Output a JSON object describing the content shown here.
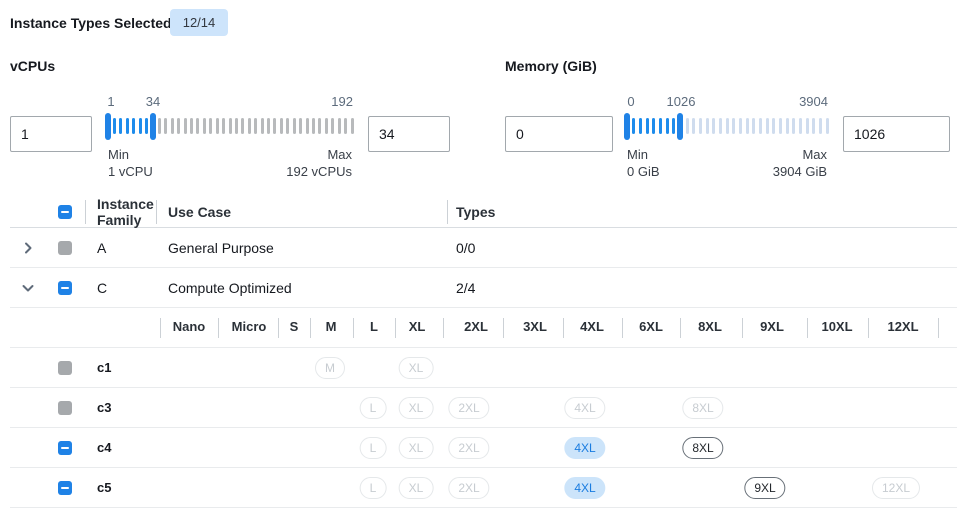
{
  "header": {
    "label": "Instance Types Selected:",
    "badge": "12/14"
  },
  "filters": {
    "vcpus": {
      "title": "vCPUs",
      "min_value": "1",
      "max_value": "34",
      "scale": {
        "min": "1",
        "mid": "34",
        "max": "192"
      },
      "min_label": "Min",
      "min_sublabel": "1 vCPU",
      "max_label": "Max",
      "max_sublabel": "192 vCPUs",
      "range": {
        "min": 1,
        "max": 192,
        "low": 1,
        "high": 34
      }
    },
    "memory": {
      "title": "Memory (GiB)",
      "min_value": "0",
      "max_value": "1026",
      "scale": {
        "min": "0",
        "mid": "1026",
        "max": "3904"
      },
      "min_label": "Min",
      "min_sublabel": "0 GiB",
      "max_label": "Max",
      "max_sublabel": "3904 GiB",
      "range": {
        "min": 0,
        "max": 3904,
        "low": 0,
        "high": 1026
      }
    }
  },
  "table": {
    "header": {
      "select_all_state": "indeterminate",
      "family": "Instance Family",
      "use_case": "Use Case",
      "types": "Types"
    },
    "size_columns": [
      "Nano",
      "Micro",
      "S",
      "M",
      "L",
      "XL",
      "2XL",
      "3XL",
      "4XL",
      "6XL",
      "8XL",
      "9XL",
      "10XL",
      "12XL"
    ],
    "families": [
      {
        "name": "A",
        "use_case": "General Purpose",
        "types": "0/0",
        "expanded": false,
        "checkbox": "disabled"
      },
      {
        "name": "C",
        "use_case": "Compute Optimized",
        "types": "2/4",
        "expanded": true,
        "checkbox": "indeterminate"
      }
    ],
    "instance_rows": [
      {
        "name": "c1",
        "checkbox": "disabled",
        "badges": [
          {
            "size": "M",
            "state": "disabled"
          },
          {
            "size": "XL",
            "state": "disabled"
          }
        ]
      },
      {
        "name": "c3",
        "checkbox": "disabled",
        "badges": [
          {
            "size": "L",
            "state": "disabled"
          },
          {
            "size": "XL",
            "state": "disabled"
          },
          {
            "size": "2XL",
            "state": "disabled"
          },
          {
            "size": "4XL",
            "state": "disabled"
          },
          {
            "size": "8XL",
            "state": "disabled"
          }
        ]
      },
      {
        "name": "c4",
        "checkbox": "indeterminate",
        "badges": [
          {
            "size": "L",
            "state": "disabled"
          },
          {
            "size": "XL",
            "state": "disabled"
          },
          {
            "size": "2XL",
            "state": "disabled"
          },
          {
            "size": "4XL",
            "state": "selected"
          },
          {
            "size": "8XL",
            "state": "enabled"
          }
        ]
      },
      {
        "name": "c5",
        "checkbox": "indeterminate",
        "badges": [
          {
            "size": "L",
            "state": "disabled"
          },
          {
            "size": "XL",
            "state": "disabled"
          },
          {
            "size": "2XL",
            "state": "disabled"
          },
          {
            "size": "4XL",
            "state": "selected"
          },
          {
            "size": "9XL",
            "state": "enabled"
          },
          {
            "size": "12XL",
            "state": "disabled"
          }
        ]
      }
    ]
  },
  "colors": {
    "accent": "#1f82e6",
    "slider_active": "#1e8cec",
    "selected_badge_bg": "#cce4fa",
    "selected_badge_text": "#1a7ce0",
    "count_badge_bg": "#cde4fb",
    "disabled_checkbox": "#a6a9ac",
    "tick_inactive_vcpus": "#b8babc",
    "tick_inactive_memory": "#cfdcee"
  }
}
